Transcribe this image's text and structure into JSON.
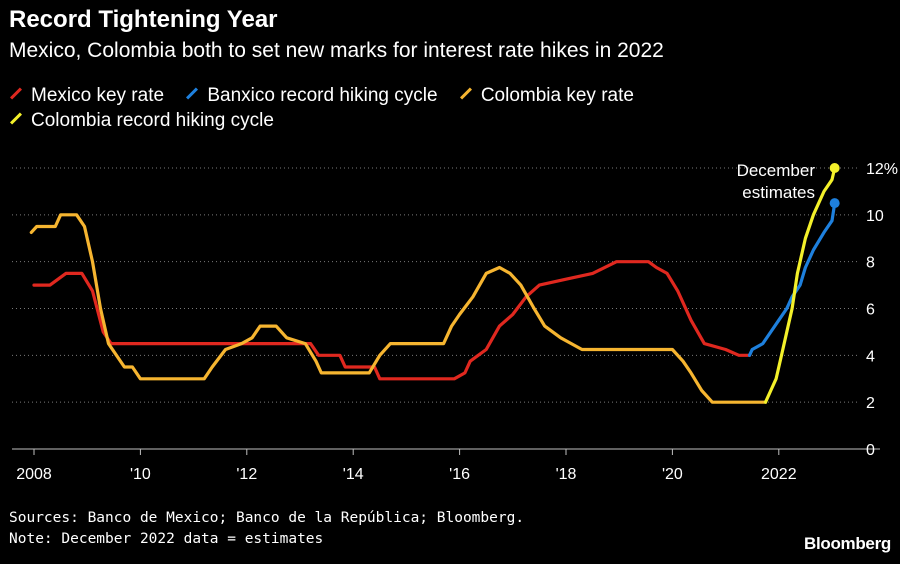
{
  "chart_data": {
    "type": "line",
    "title": "Record Tightening Year",
    "subtitle": "Mexico, Colombia both to set new marks for interest rate hikes in 2022",
    "xlabel": "",
    "ylabel": "",
    "xlim": [
      2007.75,
      2023.6
    ],
    "ylim": [
      0,
      12
    ],
    "grid": true,
    "legend_position": "top-left",
    "x_ticks": [
      {
        "value": 2008,
        "label": "2008"
      },
      {
        "value": 2010,
        "label": "'10"
      },
      {
        "value": 2012,
        "label": "'12"
      },
      {
        "value": 2014,
        "label": "'14"
      },
      {
        "value": 2016,
        "label": "'16"
      },
      {
        "value": 2018,
        "label": "'18"
      },
      {
        "value": 2020,
        "label": "'20"
      },
      {
        "value": 2022,
        "label": "2022"
      }
    ],
    "y_ticks": [
      {
        "value": 0,
        "label": "0"
      },
      {
        "value": 2,
        "label": "2"
      },
      {
        "value": 4,
        "label": "4"
      },
      {
        "value": 6,
        "label": "6"
      },
      {
        "value": 8,
        "label": "8"
      },
      {
        "value": 10,
        "label": "10"
      },
      {
        "value": 12,
        "label": "12%"
      }
    ],
    "series": [
      {
        "name": "Mexico key rate",
        "color": "#e0281f",
        "points": [
          [
            2008.0,
            7.0
          ],
          [
            2008.3,
            7.0
          ],
          [
            2008.6,
            7.5
          ],
          [
            2008.9,
            7.5
          ],
          [
            2009.1,
            6.75
          ],
          [
            2009.3,
            5.0
          ],
          [
            2009.45,
            4.5
          ],
          [
            2010.0,
            4.5
          ],
          [
            2011.0,
            4.5
          ],
          [
            2012.0,
            4.5
          ],
          [
            2013.2,
            4.5
          ],
          [
            2013.35,
            4.0
          ],
          [
            2013.75,
            4.0
          ],
          [
            2013.85,
            3.5
          ],
          [
            2014.4,
            3.5
          ],
          [
            2014.5,
            3.0
          ],
          [
            2015.0,
            3.0
          ],
          [
            2015.9,
            3.0
          ],
          [
            2016.1,
            3.25
          ],
          [
            2016.2,
            3.75
          ],
          [
            2016.5,
            4.25
          ],
          [
            2016.75,
            5.25
          ],
          [
            2017.0,
            5.75
          ],
          [
            2017.25,
            6.5
          ],
          [
            2017.5,
            7.0
          ],
          [
            2018.0,
            7.25
          ],
          [
            2018.5,
            7.5
          ],
          [
            2018.95,
            8.0
          ],
          [
            2019.55,
            8.0
          ],
          [
            2019.7,
            7.75
          ],
          [
            2019.9,
            7.5
          ],
          [
            2020.1,
            6.75
          ],
          [
            2020.35,
            5.5
          ],
          [
            2020.6,
            4.5
          ],
          [
            2021.0,
            4.25
          ],
          [
            2021.25,
            4.0
          ],
          [
            2021.45,
            4.0
          ]
        ]
      },
      {
        "name": "Banxico record hiking cycle",
        "color": "#1e80dd",
        "points": [
          [
            2021.45,
            4.0
          ],
          [
            2021.5,
            4.25
          ],
          [
            2021.7,
            4.5
          ],
          [
            2021.85,
            5.0
          ],
          [
            2022.0,
            5.5
          ],
          [
            2022.15,
            6.0
          ],
          [
            2022.25,
            6.5
          ],
          [
            2022.4,
            7.0
          ],
          [
            2022.5,
            7.75
          ],
          [
            2022.65,
            8.5
          ],
          [
            2022.85,
            9.25
          ],
          [
            2023.0,
            9.75
          ],
          [
            2023.05,
            10.5
          ]
        ]
      },
      {
        "name": "Colombia key rate",
        "color": "#f6b530",
        "points": [
          [
            2007.95,
            9.25
          ],
          [
            2008.05,
            9.5
          ],
          [
            2008.4,
            9.5
          ],
          [
            2008.5,
            10.0
          ],
          [
            2008.8,
            10.0
          ],
          [
            2008.95,
            9.5
          ],
          [
            2009.1,
            8.0
          ],
          [
            2009.25,
            6.0
          ],
          [
            2009.4,
            4.5
          ],
          [
            2009.7,
            3.5
          ],
          [
            2009.85,
            3.5
          ],
          [
            2010.0,
            3.0
          ],
          [
            2010.3,
            3.0
          ],
          [
            2010.45,
            3.0
          ],
          [
            2011.2,
            3.0
          ],
          [
            2011.35,
            3.5
          ],
          [
            2011.6,
            4.25
          ],
          [
            2011.9,
            4.5
          ],
          [
            2012.1,
            4.75
          ],
          [
            2012.25,
            5.25
          ],
          [
            2012.55,
            5.25
          ],
          [
            2012.75,
            4.75
          ],
          [
            2013.1,
            4.5
          ],
          [
            2013.3,
            3.75
          ],
          [
            2013.4,
            3.25
          ],
          [
            2014.3,
            3.25
          ],
          [
            2014.5,
            4.0
          ],
          [
            2014.7,
            4.5
          ],
          [
            2015.7,
            4.5
          ],
          [
            2015.85,
            5.25
          ],
          [
            2016.0,
            5.75
          ],
          [
            2016.25,
            6.5
          ],
          [
            2016.5,
            7.5
          ],
          [
            2016.75,
            7.75
          ],
          [
            2016.95,
            7.5
          ],
          [
            2017.15,
            7.0
          ],
          [
            2017.4,
            6.0
          ],
          [
            2017.6,
            5.25
          ],
          [
            2017.9,
            4.75
          ],
          [
            2018.1,
            4.5
          ],
          [
            2018.3,
            4.25
          ],
          [
            2019.0,
            4.25
          ],
          [
            2019.5,
            4.25
          ],
          [
            2020.0,
            4.25
          ],
          [
            2020.2,
            3.75
          ],
          [
            2020.35,
            3.25
          ],
          [
            2020.55,
            2.5
          ],
          [
            2020.75,
            2.0
          ],
          [
            2021.75,
            2.0
          ]
        ]
      },
      {
        "name": "Colombia record hiking cycle",
        "color": "#f3f02a",
        "points": [
          [
            2021.75,
            2.0
          ],
          [
            2021.85,
            2.5
          ],
          [
            2021.95,
            3.0
          ],
          [
            2022.05,
            4.0
          ],
          [
            2022.15,
            5.0
          ],
          [
            2022.25,
            6.0
          ],
          [
            2022.35,
            7.5
          ],
          [
            2022.5,
            9.0
          ],
          [
            2022.65,
            10.0
          ],
          [
            2022.85,
            11.0
          ],
          [
            2023.0,
            11.5
          ],
          [
            2023.05,
            12.0
          ]
        ]
      }
    ],
    "annotation": {
      "lines": [
        "December",
        "estimates"
      ]
    }
  },
  "footer": {
    "sources": "Sources: Banco de Mexico; Banco de la República; Bloomberg.",
    "note": "Note: December 2022 data = estimates"
  },
  "brand": "Bloomberg"
}
